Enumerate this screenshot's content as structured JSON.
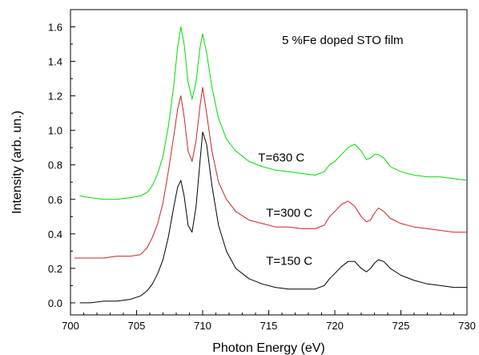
{
  "chart_data": {
    "type": "line",
    "title": "",
    "xlabel": "Photon Energy (eV)",
    "ylabel": "Intensity (arb. un.)",
    "xlim": [
      700,
      730
    ],
    "ylim": [
      -0.07,
      1.7
    ],
    "x_ticks": [
      "700",
      "705",
      "710",
      "715",
      "720",
      "725",
      "730"
    ],
    "y_ticks": [
      "0.0",
      "0.2",
      "0.4",
      "0.6",
      "0.8",
      "1.0",
      "1.2",
      "1.4",
      "1.6"
    ],
    "grid": false,
    "annotations": [
      {
        "text": "5 %Fe doped STO film",
        "x": 716.0,
        "y": 1.5
      },
      {
        "text": "T=630 C",
        "x": 714.2,
        "y": 0.82
      },
      {
        "text": "T=300 C",
        "x": 714.8,
        "y": 0.5
      },
      {
        "text": "T=150 C",
        "x": 714.8,
        "y": 0.22
      }
    ],
    "series": [
      {
        "color": "#00dd00",
        "x": [
          700.7,
          701.5,
          702.5,
          703.5,
          704.5,
          705.3,
          705.8,
          706.2,
          706.6,
          707.0,
          707.4,
          707.8,
          708.1,
          708.35,
          708.6,
          708.9,
          709.2,
          709.5,
          709.8,
          710.0,
          710.3,
          710.7,
          711.2,
          711.8,
          712.5,
          713.5,
          714.5,
          715.5,
          716.5,
          717.5,
          718.5,
          719.2,
          719.6,
          720.0,
          720.5,
          721.0,
          721.5,
          722.0,
          722.4,
          722.7,
          723.0,
          723.3,
          723.7,
          724.2,
          725.0,
          726.0,
          727.0,
          728.0,
          729.0,
          730.0
        ],
        "y": [
          0.62,
          0.61,
          0.6,
          0.6,
          0.61,
          0.62,
          0.64,
          0.68,
          0.75,
          0.85,
          1.02,
          1.25,
          1.48,
          1.6,
          1.5,
          1.28,
          1.18,
          1.28,
          1.48,
          1.56,
          1.45,
          1.25,
          1.07,
          0.95,
          0.88,
          0.82,
          0.79,
          0.77,
          0.76,
          0.75,
          0.74,
          0.76,
          0.8,
          0.82,
          0.86,
          0.9,
          0.92,
          0.88,
          0.83,
          0.84,
          0.86,
          0.86,
          0.84,
          0.79,
          0.76,
          0.74,
          0.73,
          0.73,
          0.72,
          0.71
        ]
      },
      {
        "color": "#cc2222",
        "x": [
          700.3,
          701.5,
          702.5,
          703.5,
          704.5,
          705.3,
          705.8,
          706.2,
          706.6,
          707.0,
          707.4,
          707.8,
          708.1,
          708.35,
          708.6,
          708.9,
          709.2,
          709.5,
          709.8,
          710.0,
          710.3,
          710.7,
          711.2,
          711.8,
          712.5,
          713.5,
          714.5,
          715.5,
          716.5,
          717.5,
          718.5,
          719.2,
          719.6,
          720.0,
          720.5,
          721.0,
          721.5,
          722.0,
          722.4,
          722.7,
          723.0,
          723.3,
          723.7,
          724.2,
          725.0,
          726.0,
          727.0,
          728.0,
          729.0,
          730.0
        ],
        "y": [
          0.26,
          0.26,
          0.26,
          0.27,
          0.27,
          0.28,
          0.32,
          0.38,
          0.46,
          0.58,
          0.76,
          0.96,
          1.12,
          1.2,
          1.08,
          0.88,
          0.82,
          0.94,
          1.14,
          1.25,
          1.1,
          0.88,
          0.7,
          0.6,
          0.53,
          0.48,
          0.46,
          0.44,
          0.44,
          0.43,
          0.43,
          0.45,
          0.5,
          0.53,
          0.57,
          0.59,
          0.56,
          0.5,
          0.47,
          0.48,
          0.52,
          0.55,
          0.53,
          0.49,
          0.46,
          0.44,
          0.43,
          0.42,
          0.41,
          0.41
        ]
      },
      {
        "color": "#000000",
        "x": [
          700.7,
          701.5,
          702.5,
          703.5,
          704.5,
          705.3,
          705.8,
          706.2,
          706.6,
          707.0,
          707.4,
          707.8,
          708.1,
          708.35,
          708.6,
          708.9,
          709.2,
          709.5,
          709.8,
          710.0,
          710.3,
          710.7,
          711.2,
          711.8,
          712.5,
          713.5,
          714.5,
          715.5,
          716.5,
          717.5,
          718.5,
          719.2,
          719.6,
          720.0,
          720.5,
          721.0,
          721.5,
          722.0,
          722.4,
          722.7,
          723.0,
          723.3,
          723.7,
          724.2,
          725.0,
          726.0,
          727.0,
          728.0,
          729.0,
          730.0
        ],
        "y": [
          0.0,
          0.0,
          0.01,
          0.01,
          0.02,
          0.04,
          0.07,
          0.11,
          0.17,
          0.25,
          0.38,
          0.55,
          0.67,
          0.71,
          0.62,
          0.45,
          0.41,
          0.56,
          0.82,
          0.99,
          0.92,
          0.68,
          0.45,
          0.3,
          0.2,
          0.14,
          0.11,
          0.09,
          0.08,
          0.08,
          0.08,
          0.1,
          0.14,
          0.17,
          0.21,
          0.24,
          0.24,
          0.2,
          0.18,
          0.2,
          0.23,
          0.25,
          0.24,
          0.2,
          0.16,
          0.13,
          0.11,
          0.1,
          0.09,
          0.09
        ]
      }
    ]
  }
}
